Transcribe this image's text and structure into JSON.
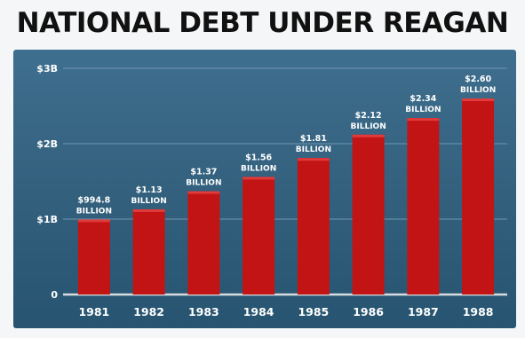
{
  "title": "NATIONAL DEBT UNDER REAGAN",
  "colors": {
    "bar": "#c21414",
    "bar_highlight": "#e03a3a",
    "panel_top": "#3f6f8f",
    "panel_bottom": "#275470",
    "gridline": "#6f97b2",
    "baseline": "#d8dde1",
    "text": "#ffffff",
    "title": "#111111"
  },
  "chart_data": {
    "type": "bar",
    "title": "NATIONAL DEBT UNDER REAGAN",
    "xlabel": "",
    "ylabel": "",
    "unit": "dollars (billions)",
    "categories": [
      "1981",
      "1982",
      "1983",
      "1984",
      "1985",
      "1986",
      "1987",
      "1988"
    ],
    "values": [
      994.8,
      1130,
      1370,
      1560,
      1810,
      2120,
      2340,
      2600
    ],
    "data_labels": [
      [
        "$994.8",
        "BILLION"
      ],
      [
        "$1.13",
        "BILLION"
      ],
      [
        "$1.37",
        "BILLION"
      ],
      [
        "$1.56",
        "BILLION"
      ],
      [
        "$1.81",
        "BILLION"
      ],
      [
        "$2.12",
        "BILLION"
      ],
      [
        "$2.34",
        "BILLION"
      ],
      [
        "$2.60",
        "BILLION"
      ]
    ],
    "ylim": [
      0,
      3000
    ],
    "yticks": [
      0,
      1000,
      2000,
      3000
    ],
    "ytick_labels": [
      "0",
      "$1B",
      "$2B",
      "$3B"
    ],
    "grid": true,
    "legend": "none"
  }
}
